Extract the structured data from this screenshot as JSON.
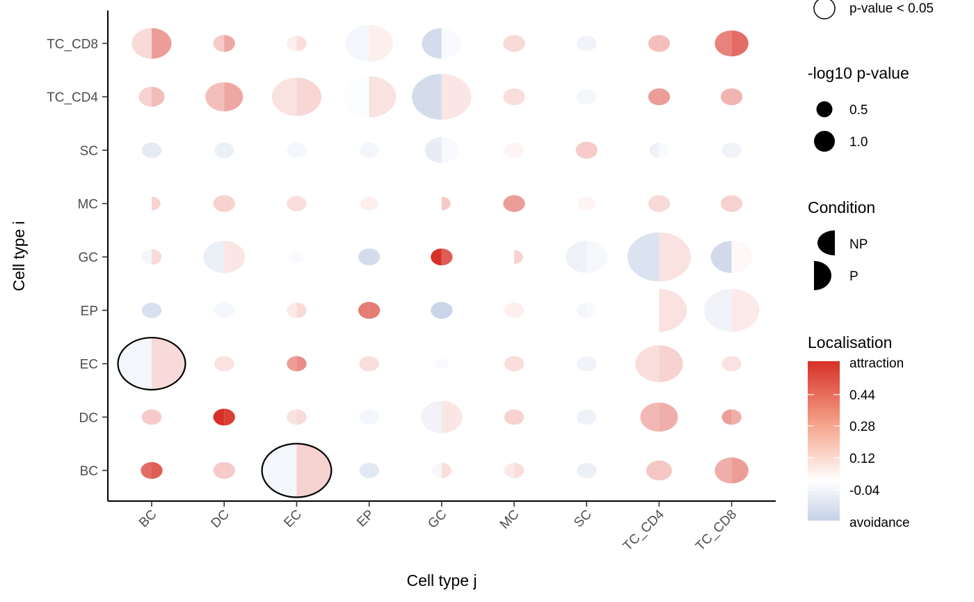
{
  "chart_data": {
    "type": "scatter",
    "subtype": "split-bubble matrix (left half = NP, right half = P)",
    "xlabel": "Cell type j",
    "ylabel": "Cell type i",
    "x_categories": [
      "BC",
      "DC",
      "EC",
      "EP",
      "GC",
      "MC",
      "SC",
      "TC_CD4",
      "TC_CD8"
    ],
    "y_categories": [
      "BC",
      "DC",
      "EC",
      "EP",
      "GC",
      "MC",
      "SC",
      "TC_CD4",
      "TC_CD8"
    ],
    "conditions": [
      "NP",
      "P"
    ],
    "color_scale": {
      "min": -0.2,
      "max": 0.6,
      "low_color": "#c5d0e6",
      "mid_color": "#ffffff",
      "high_color": "#d73027",
      "ticks": [
        0.44,
        0.28,
        0.12,
        -0.04
      ],
      "top_label": "attraction",
      "bottom_label": "avoidance"
    },
    "size_scale": {
      "breaks": [
        0.5,
        1.0
      ]
    },
    "points": [
      {
        "i": "TC_CD8",
        "j": "BC",
        "r": 1.0,
        "np": 0.08,
        "p": 0.25,
        "sig": false
      },
      {
        "i": "TC_CD8",
        "j": "DC",
        "r": 0.55,
        "np": 0.12,
        "p": 0.22,
        "sig": false
      },
      {
        "i": "TC_CD8",
        "j": "EC",
        "r": 0.5,
        "np": 0.03,
        "p": 0.07,
        "sig": false
      },
      {
        "i": "TC_CD8",
        "j": "EP",
        "r": 1.2,
        "np": -0.04,
        "p": 0.03,
        "sig": false
      },
      {
        "i": "TC_CD8",
        "j": "GC",
        "r": 1.0,
        "np": -0.15,
        "p": -0.02,
        "sig": false
      },
      {
        "i": "TC_CD8",
        "j": "MC",
        "r": 0.55,
        "np": 0.08,
        "p": 0.08,
        "sig": false
      },
      {
        "i": "TC_CD8",
        "j": "SC",
        "r": 0.5,
        "np": -0.05,
        "p": -0.05,
        "sig": false
      },
      {
        "i": "TC_CD8",
        "j": "TC_CD4",
        "r": 0.55,
        "np": 0.15,
        "p": 0.15,
        "sig": false
      },
      {
        "i": "TC_CD8",
        "j": "TC_CD8",
        "r": 0.85,
        "np": 0.33,
        "p": 0.4,
        "sig": false
      },
      {
        "i": "TC_CD4",
        "j": "BC",
        "r": 0.65,
        "np": 0.1,
        "p": 0.16,
        "sig": false
      },
      {
        "i": "TC_CD4",
        "j": "DC",
        "r": 0.95,
        "np": 0.15,
        "p": 0.22,
        "sig": false
      },
      {
        "i": "TC_CD4",
        "j": "EC",
        "r": 1.25,
        "np": 0.06,
        "p": 0.09,
        "sig": false
      },
      {
        "i": "TC_CD4",
        "j": "EP",
        "r": 1.35,
        "np": -0.01,
        "p": 0.06,
        "sig": false
      },
      {
        "i": "TC_CD4",
        "j": "GC",
        "r": 1.5,
        "np": -0.15,
        "p": 0.05,
        "sig": false
      },
      {
        "i": "TC_CD4",
        "j": "MC",
        "r": 0.55,
        "np": 0.07,
        "p": 0.07,
        "sig": false
      },
      {
        "i": "TC_CD4",
        "j": "SC",
        "r": 0.5,
        "np": -0.04,
        "p": -0.04,
        "sig": false
      },
      {
        "i": "TC_CD4",
        "j": "TC_CD4",
        "r": 0.55,
        "np": 0.25,
        "p": 0.25,
        "sig": false
      },
      {
        "i": "TC_CD4",
        "j": "TC_CD8",
        "r": 0.55,
        "np": 0.18,
        "p": 0.18,
        "sig": false
      },
      {
        "i": "SC",
        "j": "BC",
        "r": 0.5,
        "np": -0.09,
        "p": -0.09,
        "sig": false
      },
      {
        "i": "SC",
        "j": "DC",
        "r": 0.5,
        "np": -0.07,
        "p": -0.07,
        "sig": false
      },
      {
        "i": "SC",
        "j": "EC",
        "r": 0.5,
        "np": -0.04,
        "p": -0.04,
        "sig": false
      },
      {
        "i": "SC",
        "j": "EP",
        "r": 0.5,
        "np": -0.04,
        "p": -0.04,
        "sig": false
      },
      {
        "i": "SC",
        "j": "GC",
        "r": 0.85,
        "np": -0.08,
        "p": -0.02,
        "sig": false
      },
      {
        "i": "SC",
        "j": "MC",
        "r": 0.5,
        "np": 0.02,
        "p": 0.02,
        "sig": false
      },
      {
        "i": "SC",
        "j": "SC",
        "r": 0.55,
        "np": 0.12,
        "p": 0.12,
        "sig": false
      },
      {
        "i": "SC",
        "j": "TC_CD4",
        "r": 0.5,
        "np": -0.06,
        "p": -0.02,
        "sig": false
      },
      {
        "i": "SC",
        "j": "TC_CD8",
        "r": 0.5,
        "np": -0.05,
        "p": -0.05,
        "sig": false
      },
      {
        "i": "MC",
        "j": "BC",
        "r": 0.45,
        "np": 0.0,
        "p": 0.1,
        "sig": false
      },
      {
        "i": "MC",
        "j": "DC",
        "r": 0.55,
        "np": 0.1,
        "p": 0.1,
        "sig": false
      },
      {
        "i": "MC",
        "j": "EC",
        "r": 0.5,
        "np": 0.07,
        "p": 0.07,
        "sig": false
      },
      {
        "i": "MC",
        "j": "EP",
        "r": 0.45,
        "np": 0.03,
        "p": 0.03,
        "sig": false
      },
      {
        "i": "MC",
        "j": "GC",
        "r": 0.45,
        "np": 0.0,
        "p": 0.12,
        "sig": false
      },
      {
        "i": "MC",
        "j": "MC",
        "r": 0.55,
        "np": 0.25,
        "p": 0.25,
        "sig": false
      },
      {
        "i": "MC",
        "j": "SC",
        "r": 0.45,
        "np": 0.02,
        "p": 0.02,
        "sig": false
      },
      {
        "i": "MC",
        "j": "TC_CD4",
        "r": 0.55,
        "np": 0.08,
        "p": 0.08,
        "sig": false
      },
      {
        "i": "MC",
        "j": "TC_CD8",
        "r": 0.55,
        "np": 0.1,
        "p": 0.1,
        "sig": false
      },
      {
        "i": "GC",
        "j": "BC",
        "r": 0.5,
        "np": -0.04,
        "p": 0.08,
        "sig": false
      },
      {
        "i": "GC",
        "j": "DC",
        "r": 1.05,
        "np": -0.07,
        "p": 0.05,
        "sig": false
      },
      {
        "i": "GC",
        "j": "EC",
        "r": 0.4,
        "np": -0.02,
        "p": -0.02,
        "sig": false
      },
      {
        "i": "GC",
        "j": "EP",
        "r": 0.55,
        "np": -0.15,
        "p": -0.15,
        "sig": false
      },
      {
        "i": "GC",
        "j": "GC",
        "r": 0.55,
        "np": 0.6,
        "p": 0.45,
        "sig": false
      },
      {
        "i": "GC",
        "j": "MC",
        "r": 0.45,
        "np": 0.0,
        "p": 0.1,
        "sig": false
      },
      {
        "i": "GC",
        "j": "SC",
        "r": 1.05,
        "np": -0.06,
        "p": -0.03,
        "sig": false
      },
      {
        "i": "GC",
        "j": "TC_CD4",
        "r": 1.6,
        "np": -0.12,
        "p": 0.06,
        "sig": false
      },
      {
        "i": "GC",
        "j": "TC_CD8",
        "r": 1.05,
        "np": -0.16,
        "p": 0.01,
        "sig": false
      },
      {
        "i": "EP",
        "j": "BC",
        "r": 0.5,
        "np": -0.13,
        "p": -0.13,
        "sig": false
      },
      {
        "i": "EP",
        "j": "DC",
        "r": 0.5,
        "np": -0.04,
        "p": -0.04,
        "sig": false
      },
      {
        "i": "EP",
        "j": "EC",
        "r": 0.5,
        "np": 0.04,
        "p": 0.08,
        "sig": false
      },
      {
        "i": "EP",
        "j": "EP",
        "r": 0.55,
        "np": 0.35,
        "p": 0.35,
        "sig": false
      },
      {
        "i": "EP",
        "j": "GC",
        "r": 0.55,
        "np": -0.18,
        "p": -0.18,
        "sig": false
      },
      {
        "i": "EP",
        "j": "MC",
        "r": 0.5,
        "np": 0.03,
        "p": 0.03,
        "sig": false
      },
      {
        "i": "EP",
        "j": "SC",
        "r": 0.5,
        "np": -0.04,
        "p": -0.02,
        "sig": false
      },
      {
        "i": "EP",
        "j": "TC_CD4",
        "r": 1.4,
        "np": 0.0,
        "p": 0.06,
        "sig": false
      },
      {
        "i": "EP",
        "j": "TC_CD8",
        "r": 1.4,
        "np": -0.05,
        "p": 0.04,
        "sig": false
      },
      {
        "i": "EC",
        "j": "BC",
        "r": 1.7,
        "np": -0.04,
        "p": 0.08,
        "sig": true
      },
      {
        "i": "EC",
        "j": "DC",
        "r": 0.5,
        "np": 0.06,
        "p": 0.06,
        "sig": false
      },
      {
        "i": "EC",
        "j": "EC",
        "r": 0.5,
        "np": 0.25,
        "p": 0.3,
        "sig": false
      },
      {
        "i": "EC",
        "j": "EP",
        "r": 0.5,
        "np": 0.07,
        "p": 0.07,
        "sig": false
      },
      {
        "i": "EC",
        "j": "GC",
        "r": 0.35,
        "np": -0.02,
        "p": -0.02,
        "sig": false
      },
      {
        "i": "EC",
        "j": "MC",
        "r": 0.5,
        "np": 0.07,
        "p": 0.07,
        "sig": false
      },
      {
        "i": "EC",
        "j": "SC",
        "r": 0.5,
        "np": -0.05,
        "p": -0.05,
        "sig": false
      },
      {
        "i": "EC",
        "j": "TC_CD4",
        "r": 1.2,
        "np": 0.07,
        "p": 0.1,
        "sig": false
      },
      {
        "i": "EC",
        "j": "TC_CD8",
        "r": 0.5,
        "np": 0.06,
        "p": 0.06,
        "sig": false
      },
      {
        "i": "DC",
        "j": "BC",
        "r": 0.5,
        "np": 0.12,
        "p": 0.12,
        "sig": false
      },
      {
        "i": "DC",
        "j": "DC",
        "r": 0.55,
        "np": 0.6,
        "p": 0.55,
        "sig": false
      },
      {
        "i": "DC",
        "j": "EC",
        "r": 0.5,
        "np": 0.06,
        "p": 0.08,
        "sig": false
      },
      {
        "i": "DC",
        "j": "EP",
        "r": 0.5,
        "np": -0.04,
        "p": -0.04,
        "sig": false
      },
      {
        "i": "DC",
        "j": "GC",
        "r": 1.05,
        "np": -0.05,
        "p": 0.05,
        "sig": false
      },
      {
        "i": "DC",
        "j": "MC",
        "r": 0.5,
        "np": 0.1,
        "p": 0.1,
        "sig": false
      },
      {
        "i": "DC",
        "j": "SC",
        "r": 0.5,
        "np": -0.06,
        "p": -0.06,
        "sig": false
      },
      {
        "i": "DC",
        "j": "TC_CD4",
        "r": 0.95,
        "np": 0.17,
        "p": 0.2,
        "sig": false
      },
      {
        "i": "DC",
        "j": "TC_CD8",
        "r": 0.5,
        "np": 0.25,
        "p": 0.2,
        "sig": false
      },
      {
        "i": "BC",
        "j": "BC",
        "r": 0.55,
        "np": 0.4,
        "p": 0.45,
        "sig": false
      },
      {
        "i": "BC",
        "j": "DC",
        "r": 0.55,
        "np": 0.12,
        "p": 0.12,
        "sig": false
      },
      {
        "i": "BC",
        "j": "EC",
        "r": 1.75,
        "np": -0.04,
        "p": 0.1,
        "sig": true
      },
      {
        "i": "BC",
        "j": "EP",
        "r": 0.5,
        "np": -0.1,
        "p": -0.1,
        "sig": false
      },
      {
        "i": "BC",
        "j": "GC",
        "r": 0.5,
        "np": -0.03,
        "p": 0.07,
        "sig": false
      },
      {
        "i": "BC",
        "j": "MC",
        "r": 0.5,
        "np": 0.04,
        "p": 0.07,
        "sig": false
      },
      {
        "i": "BC",
        "j": "SC",
        "r": 0.5,
        "np": -0.07,
        "p": -0.07,
        "sig": false
      },
      {
        "i": "BC",
        "j": "TC_CD4",
        "r": 0.65,
        "np": 0.13,
        "p": 0.13,
        "sig": false
      },
      {
        "i": "BC",
        "j": "TC_CD8",
        "r": 0.85,
        "np": 0.2,
        "p": 0.25,
        "sig": false
      }
    ]
  },
  "legend": {
    "significance_label": "p-value < 0.05",
    "size_title": "-log10 p-value",
    "size_labels": [
      "0.5",
      "1.0"
    ],
    "condition_title": "Condition",
    "condition_labels": [
      "NP",
      "P"
    ],
    "color_title": "Localisation",
    "color_labels": [
      "attraction",
      "0.44",
      "0.28",
      "0.12",
      "-0.04",
      "avoidance"
    ]
  }
}
